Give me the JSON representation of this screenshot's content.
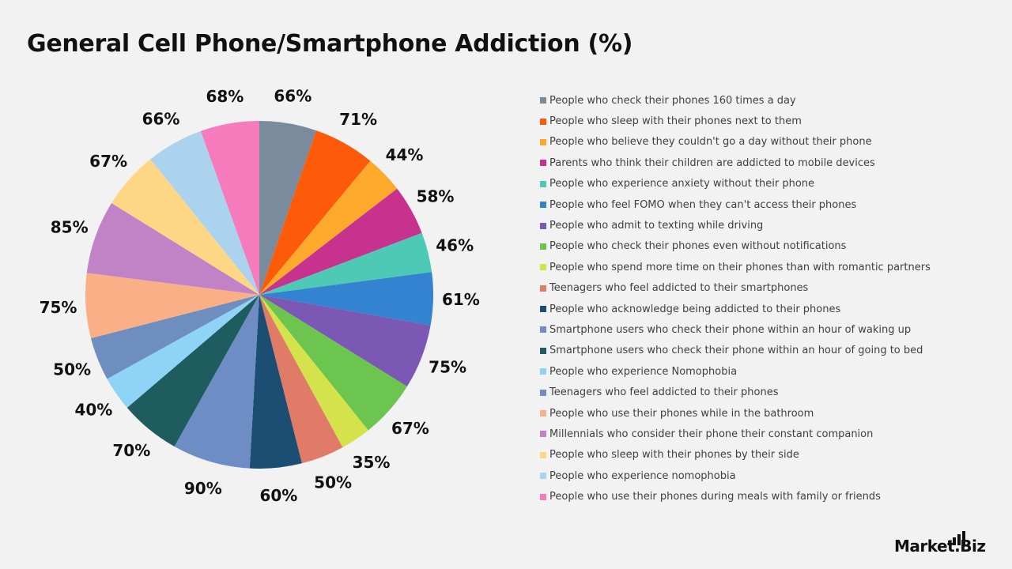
{
  "title": "General Cell Phone/Smartphone Addiction (%)",
  "chart_data": {
    "type": "pie",
    "title": "General Cell Phone/Smartphone Addiction (%)",
    "legend_position": "right",
    "slices": [
      {
        "label": "People who check their phones 160 times a day",
        "value": 66,
        "display": "66%",
        "color": "#7a8b9e"
      },
      {
        "label": "People who sleep with their phones next to them",
        "value": 71,
        "display": "71%",
        "color": "#fd5a0a"
      },
      {
        "label": "People who believe they couldn't go a day without their phone",
        "value": 44,
        "display": "44%",
        "color": "#fca92c"
      },
      {
        "label": "Parents who think their children are addicted to mobile devices",
        "value": 58,
        "display": "58%",
        "color": "#c7328e"
      },
      {
        "label": "People who experience anxiety without their phone",
        "value": 46,
        "display": "46%",
        "color": "#4ec9b5"
      },
      {
        "label": "People who feel FOMO when they can't access their phones",
        "value": 61,
        "display": "61%",
        "color": "#3383d1"
      },
      {
        "label": "People who admit to texting while driving",
        "value": 75,
        "display": "75%",
        "color": "#7b58b3"
      },
      {
        "label": "People who check their phones even without notifications",
        "value": 67,
        "display": "67%",
        "color": "#6cc54f"
      },
      {
        "label": "People who spend more time on their phones than with romantic partners",
        "value": 35,
        "display": "35%",
        "color": "#d4e34b"
      },
      {
        "label": "Teenagers who feel addicted to their smartphones",
        "value": 50,
        "display": "50%",
        "color": "#e07b68"
      },
      {
        "label": "People who acknowledge being addicted to their phones",
        "value": 60,
        "display": "60%",
        "color": "#1b4e72"
      },
      {
        "label": "Smartphone users who check their phone within an hour of waking up",
        "value": 90,
        "display": "90%",
        "color": "#6d8dc4"
      },
      {
        "label": "Smartphone users who check their phone within an hour of going to bed",
        "value": 70,
        "display": "70%",
        "color": "#1f5c5f"
      },
      {
        "label": "People who experience Nomophobia",
        "value": 40,
        "display": "40%",
        "color": "#8fd3f7"
      },
      {
        "label": "Teenagers who feel addicted to their phones",
        "value": 50,
        "display": "50%",
        "color": "#6f8ec0"
      },
      {
        "label": "People who use their phones while in the bathroom",
        "value": 75,
        "display": "75%",
        "color": "#fbaf87"
      },
      {
        "label": "Millennials who consider their phone their constant companion",
        "value": 85,
        "display": "85%",
        "color": "#c283c6"
      },
      {
        "label": "People who sleep with their phones by their side",
        "value": 67,
        "display": "67%",
        "color": "#fdd786"
      },
      {
        "label": "People who experience nomophobia",
        "value": 66,
        "display": "66%",
        "color": "#acd3ee"
      },
      {
        "label": "People who use their phones during meals with family or friends",
        "value": 68,
        "display": "68%",
        "color": "#f57bbd"
      }
    ]
  },
  "logo": {
    "text": "Market.Biz"
  }
}
